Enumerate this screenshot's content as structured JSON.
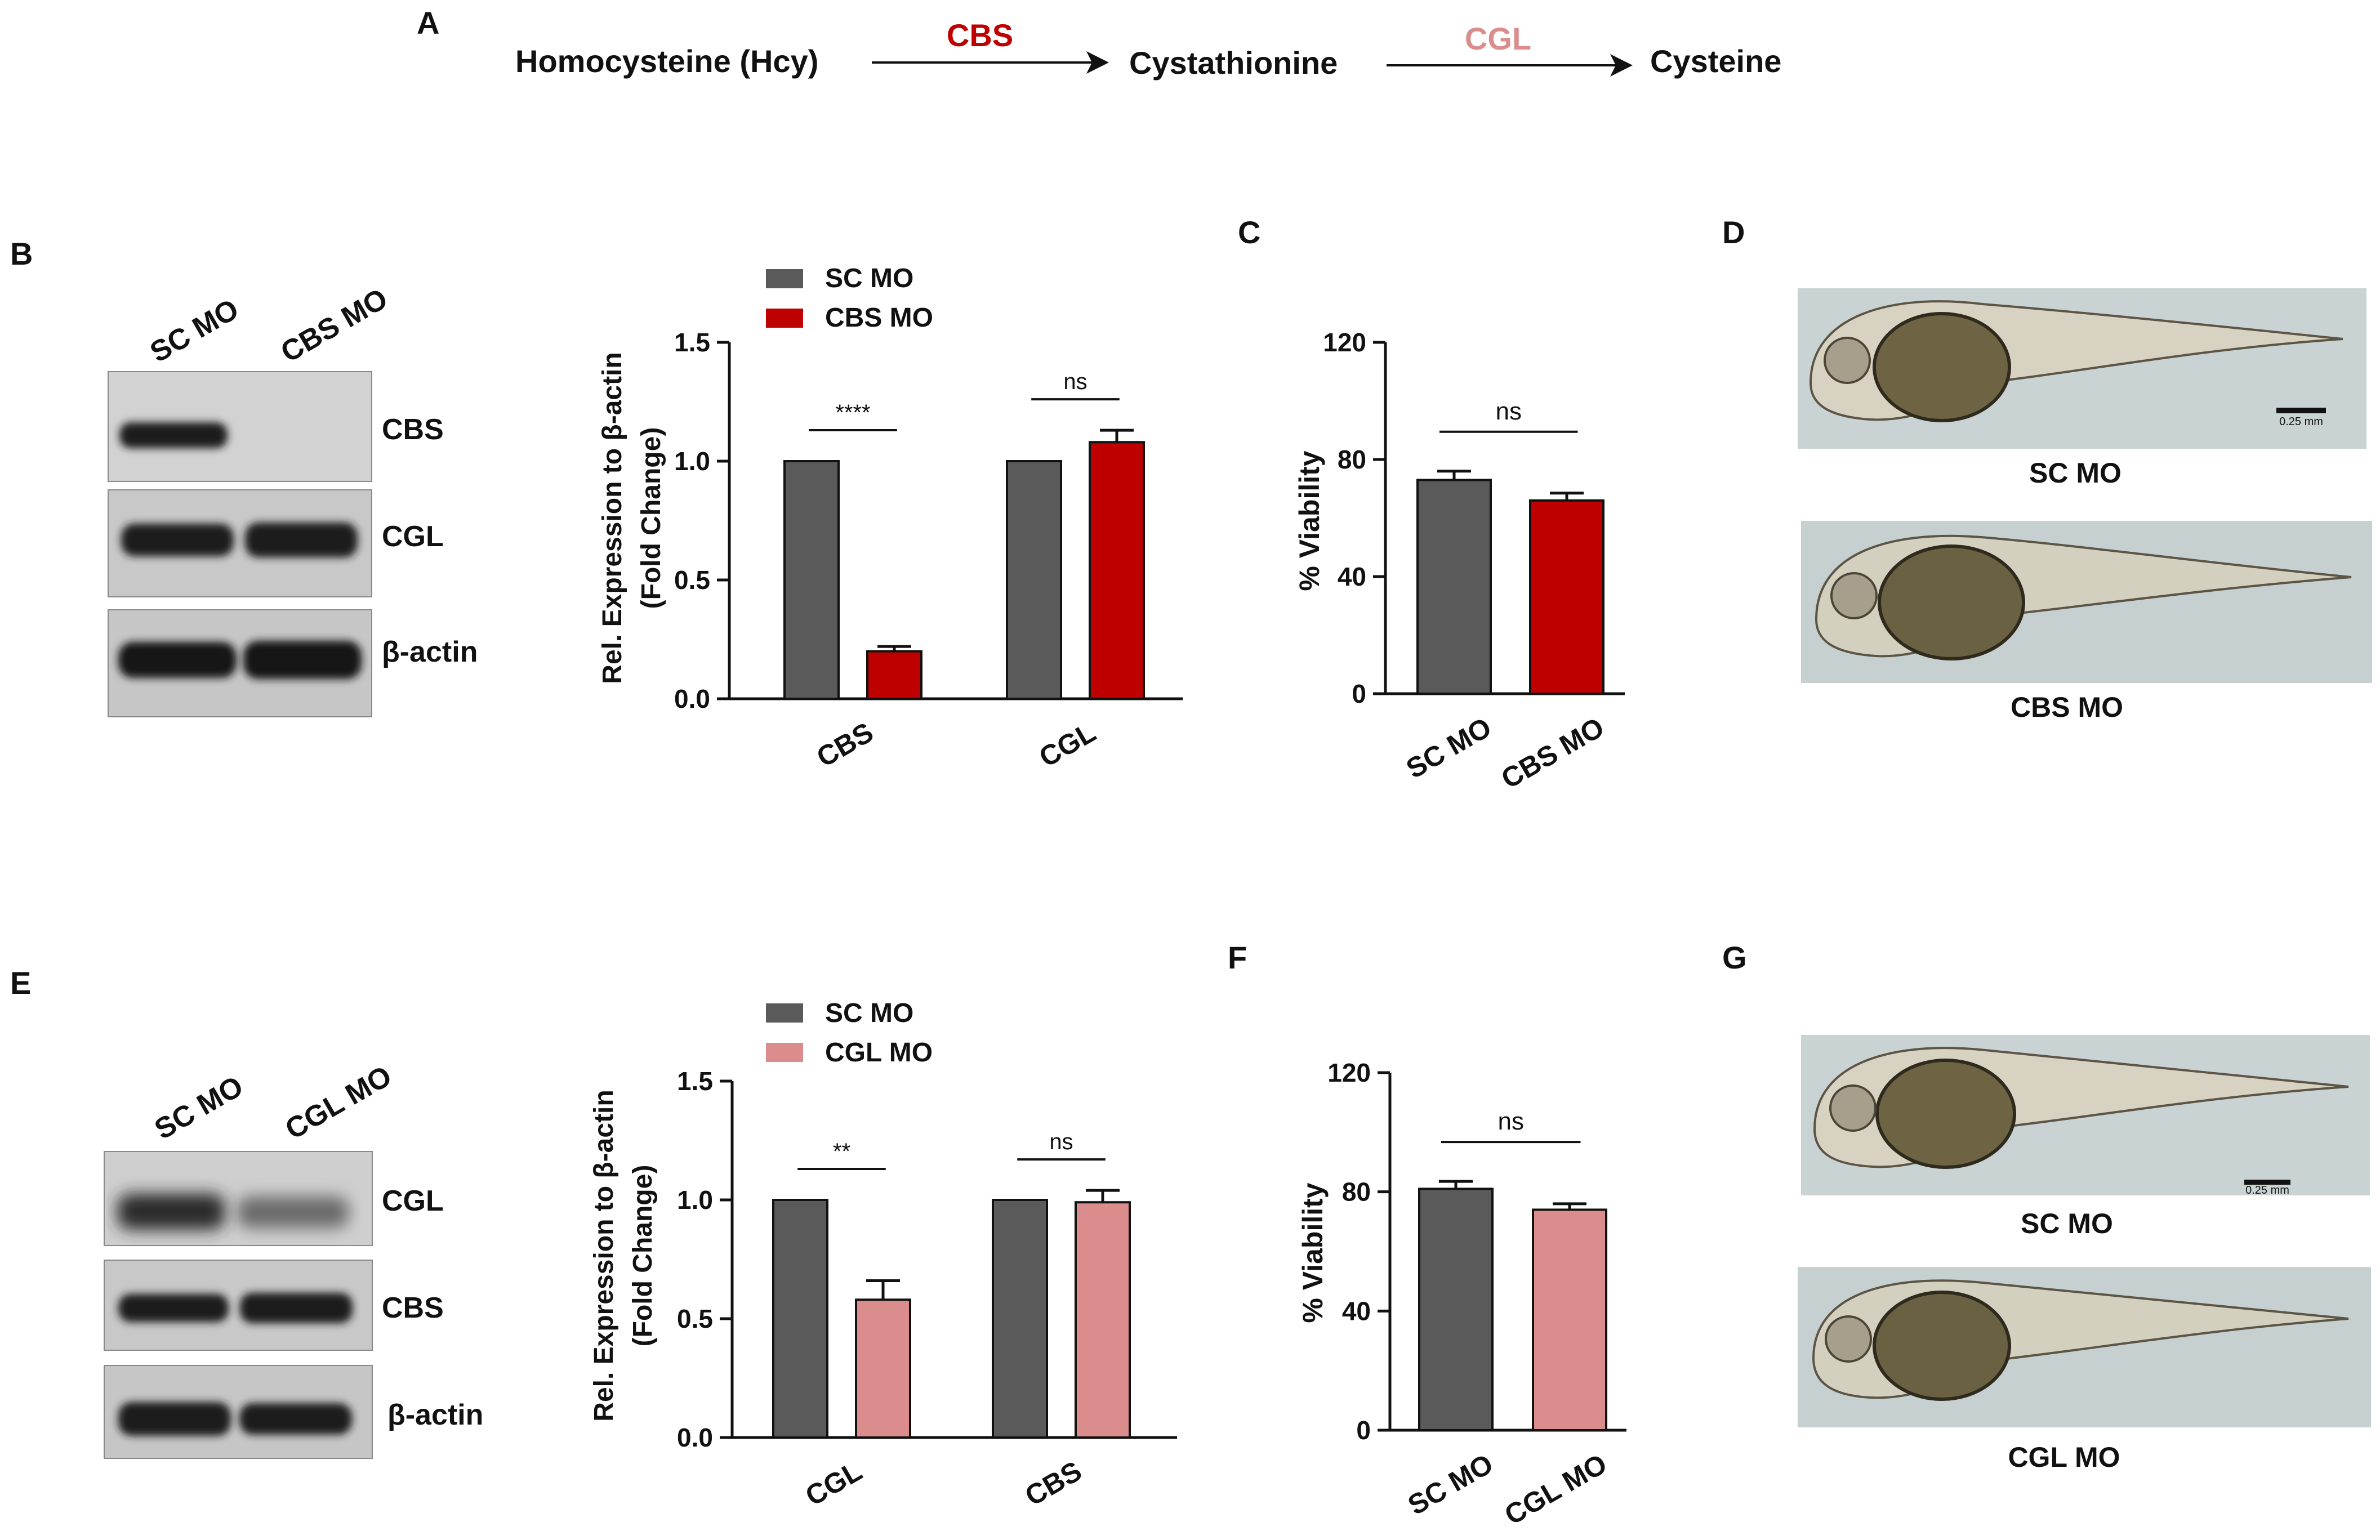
{
  "colors": {
    "sc": "#5a5a5a",
    "cbs": "#bf0000",
    "cgl": "#db8c8c",
    "axis": "#111111",
    "blot_bg": "#cfcfcf",
    "band": "#1e1e1e",
    "embryo_bg": "#c9d2d2"
  },
  "panel_a": {
    "letter": "A",
    "substrate": "Homocysteine (Hcy)",
    "enzyme1": "CBS",
    "intermediate": "Cystathionine",
    "enzyme2": "CGL",
    "product": "Cysteine"
  },
  "panel_b": {
    "letter": "B",
    "lanes": [
      "SC MO",
      "CBS MO"
    ],
    "rows": [
      "CBS",
      "CGL",
      "β-actin"
    ]
  },
  "panel_c": {
    "letter": "C"
  },
  "panel_d": {
    "letter": "D",
    "captions": [
      "SC MO",
      "CBS MO"
    ],
    "scale_label": "0.25 mm"
  },
  "panel_e": {
    "letter": "E",
    "lanes": [
      "SC MO",
      "CGL MO"
    ],
    "rows": [
      "CGL",
      "CBS",
      "β-actin"
    ]
  },
  "panel_f": {
    "letter": "F"
  },
  "panel_g": {
    "letter": "G",
    "captions": [
      "SC MO",
      "CGL MO"
    ],
    "scale_label": "0.25 mm"
  },
  "chart_data": [
    {
      "id": "B-bar",
      "type": "bar",
      "ylabel": "Rel. Expression to β-actin",
      "ylabel2": "(Fold  Change)",
      "categories": [
        "CBS",
        "CGL"
      ],
      "series": [
        {
          "name": "SC MO",
          "color": "#5a5a5a",
          "values": [
            1.0,
            1.0
          ],
          "errors": [
            0,
            0
          ]
        },
        {
          "name": "CBS MO",
          "color": "#bf0000",
          "values": [
            0.2,
            1.08
          ],
          "errors": [
            0.02,
            0.05
          ]
        }
      ],
      "ylim": [
        0,
        1.5
      ],
      "yticks": [
        "0.0",
        "0.5",
        "1.0",
        "1.5"
      ],
      "significance": [
        "****",
        "ns"
      ],
      "legend": "top-left"
    },
    {
      "id": "C-bar",
      "type": "bar",
      "ylabel": "% Viability",
      "categories": [
        "SC MO",
        "CBS MO"
      ],
      "values": [
        73,
        66
      ],
      "errors": [
        3,
        2.5
      ],
      "colors": [
        "#5a5a5a",
        "#bf0000"
      ],
      "ylim": [
        0,
        120
      ],
      "yticks": [
        "0",
        "40",
        "80",
        "120"
      ],
      "significance": "ns"
    },
    {
      "id": "E-bar",
      "type": "bar",
      "ylabel": "Rel. Expression to β-actin",
      "ylabel2": "(Fold  Change)",
      "categories": [
        "CGL",
        "CBS"
      ],
      "series": [
        {
          "name": "SC MO",
          "color": "#5a5a5a",
          "values": [
            1.0,
            1.0
          ],
          "errors": [
            0,
            0
          ]
        },
        {
          "name": "CGL MO",
          "color": "#db8c8c",
          "values": [
            0.58,
            0.99
          ],
          "errors": [
            0.08,
            0.05
          ]
        }
      ],
      "ylim": [
        0,
        1.5
      ],
      "yticks": [
        "0.0",
        "0.5",
        "1.0",
        "1.5"
      ],
      "significance": [
        "**",
        "ns"
      ],
      "legend": "top-left"
    },
    {
      "id": "F-bar",
      "type": "bar",
      "ylabel": "% Viability",
      "categories": [
        "SC MO",
        "CGL MO"
      ],
      "values": [
        81,
        74
      ],
      "errors": [
        2.5,
        2
      ],
      "colors": [
        "#5a5a5a",
        "#db8c8c"
      ],
      "ylim": [
        0,
        120
      ],
      "yticks": [
        "0",
        "40",
        "80",
        "120"
      ],
      "significance": "ns"
    }
  ]
}
